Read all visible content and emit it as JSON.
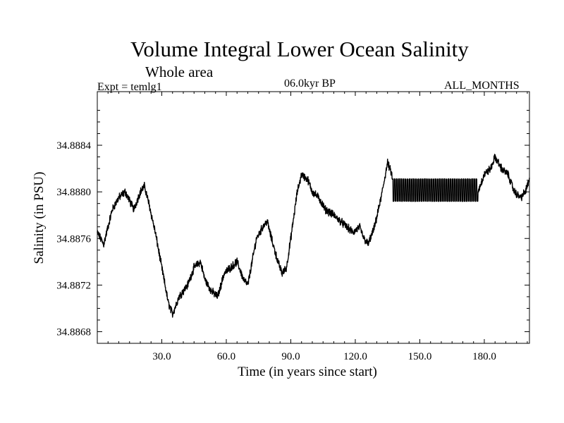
{
  "chart_data": {
    "type": "line",
    "title": "Volume Integral Lower Ocean Salinity",
    "subtitle": "Whole area",
    "experiment_label": "Expt = temlg1",
    "period_label": "06.0kyr BP",
    "months_label": "ALL_MONTHS",
    "xlabel": "Time (in years since start)",
    "ylabel": "Salinity (in PSU)",
    "xlim": [
      0,
      201
    ],
    "ylim": [
      34.8867,
      34.88886
    ],
    "x_ticks": [
      30,
      60,
      90,
      120,
      150,
      180
    ],
    "x_tick_labels": [
      "30.0",
      "60.0",
      "90.0",
      "120.0",
      "150.0",
      "180.0"
    ],
    "y_ticks": [
      34.8868,
      34.8872,
      34.8876,
      34.888,
      34.8884
    ],
    "y_tick_labels": [
      "34.8868",
      "34.8872",
      "34.8876",
      "34.8880",
      "34.8884"
    ],
    "grid": false,
    "series": [
      {
        "name": "Salinity",
        "x": [
          0,
          3,
          7,
          10,
          13,
          17,
          20,
          22,
          24,
          27,
          30,
          33,
          35,
          38,
          42,
          45,
          48,
          50,
          53,
          56,
          59,
          62,
          65,
          68,
          70,
          72,
          74,
          77,
          79,
          81,
          84,
          86,
          88,
          90,
          93,
          95,
          98,
          100,
          103,
          106,
          110,
          113,
          116,
          119,
          122,
          124,
          126,
          129,
          132,
          135,
          137,
          140,
          145,
          150,
          155,
          160,
          165,
          170,
          175,
          177,
          180,
          183,
          185,
          188,
          191,
          194,
          197,
          199,
          201
        ],
        "values": [
          34.88765,
          34.88755,
          34.88785,
          34.88795,
          34.888,
          34.88785,
          34.888,
          34.88805,
          34.8879,
          34.88765,
          34.88735,
          34.88705,
          34.88695,
          34.8871,
          34.8872,
          34.88735,
          34.8874,
          34.88725,
          34.88715,
          34.8871,
          34.8873,
          34.88735,
          34.8874,
          34.88725,
          34.8872,
          34.8874,
          34.8876,
          34.8877,
          34.88775,
          34.8876,
          34.8874,
          34.8873,
          34.88735,
          34.8876,
          34.888,
          34.88815,
          34.8881,
          34.888,
          34.88795,
          34.88785,
          34.8878,
          34.88775,
          34.8877,
          34.88765,
          34.8877,
          34.8876,
          34.88755,
          34.8877,
          34.88795,
          34.88825,
          34.88815,
          34.888,
          34.888,
          34.888,
          34.888,
          34.888,
          34.888,
          34.888,
          34.888,
          34.888,
          34.88815,
          34.8882,
          34.8883,
          34.8882,
          34.88815,
          34.888,
          34.88795,
          34.888,
          34.8881
        ]
      }
    ],
    "oscillation": {
      "x_range": [
        137,
        177
      ],
      "min": 34.88792,
      "max": 34.88811,
      "period": 1
    }
  }
}
